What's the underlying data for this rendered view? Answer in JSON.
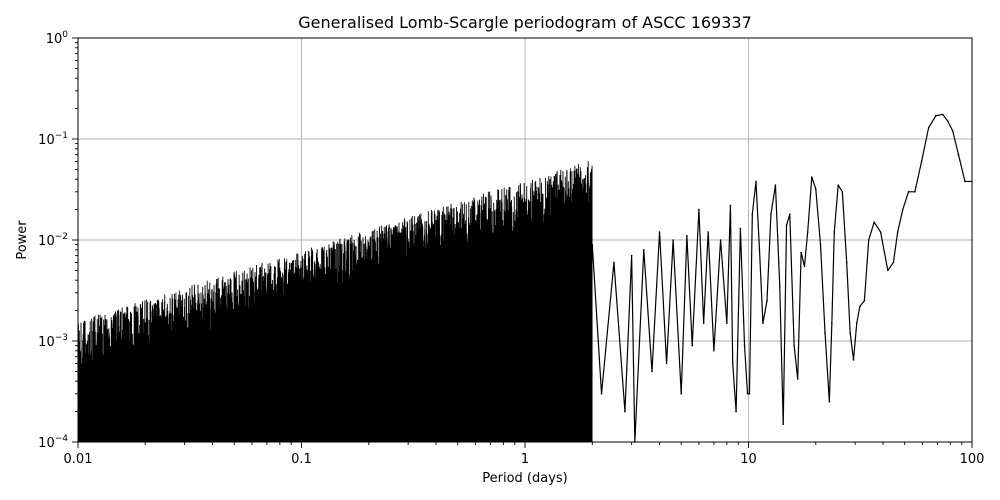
{
  "chart_data": {
    "type": "line",
    "title": "Generalised Lomb-Scargle periodogram of ASCC 169337",
    "xlabel": "Period (days)",
    "ylabel": "Power",
    "xscale": "log",
    "yscale": "log",
    "xlim": [
      0.01,
      100
    ],
    "ylim": [
      0.0001,
      1
    ],
    "grid": true,
    "x_major_ticks": [
      {
        "value": 0.01,
        "label": "0.01"
      },
      {
        "value": 0.1,
        "label": "0.1"
      },
      {
        "value": 1,
        "label": "1"
      },
      {
        "value": 10,
        "label": "10"
      },
      {
        "value": 100,
        "label": "100"
      }
    ],
    "y_major_ticks": [
      {
        "value": 0.0001,
        "base": "10",
        "exponent": "−4"
      },
      {
        "value": 0.001,
        "base": "10",
        "exponent": "−3"
      },
      {
        "value": 0.01,
        "base": "10",
        "exponent": "−2"
      },
      {
        "value": 0.1,
        "base": "10",
        "exponent": "−1"
      },
      {
        "value": 1,
        "base": "10",
        "exponent": "0"
      }
    ],
    "colors": {
      "line": "#000000",
      "grid": "#b0b0b0"
    },
    "series": [
      {
        "x": [
          2.0,
          2.2,
          2.5,
          2.8,
          3.0,
          3.1,
          3.4,
          3.7,
          4.0,
          4.3,
          4.6,
          5.0,
          5.3,
          5.6,
          6.0,
          6.3,
          6.6,
          7.0,
          7.5,
          8.0,
          8.3,
          8.5,
          8.8,
          9.2,
          9.6,
          9.9,
          10.1,
          10.4,
          10.8,
          11.2,
          11.6,
          12.1,
          12.6,
          13.2,
          13.8,
          14.3,
          14.8,
          15.3,
          16.0,
          16.6,
          17.2,
          17.8,
          18.4,
          19.2,
          20.0,
          21.0,
          22.0,
          23.0,
          23.6,
          24.2,
          25.2,
          26.3,
          27.5,
          28.5,
          29.5,
          30.5,
          31.5,
          33.0,
          34.5,
          36.5,
          39.0,
          42.0,
          44.5,
          46.5,
          49.0,
          52.0,
          55.5,
          59.5,
          64.0,
          69.0,
          74.0,
          78.0,
          82.0,
          87.0,
          93.0,
          100.0
        ],
        "y": [
          0.009,
          0.0003,
          0.006,
          0.0002,
          0.007,
          0.0001,
          0.008,
          0.0005,
          0.012,
          0.0006,
          0.01,
          0.0003,
          0.011,
          0.0009,
          0.02,
          0.0015,
          0.012,
          0.0008,
          0.01,
          0.0015,
          0.022,
          0.0006,
          0.0002,
          0.013,
          0.0009,
          0.0003,
          0.0003,
          0.018,
          0.038,
          0.008,
          0.0015,
          0.0025,
          0.018,
          0.035,
          0.0035,
          0.00015,
          0.014,
          0.018,
          0.0009,
          0.00042,
          0.0075,
          0.0055,
          0.012,
          0.042,
          0.032,
          0.009,
          0.0012,
          0.00025,
          0.0015,
          0.012,
          0.035,
          0.03,
          0.006,
          0.0012,
          0.00065,
          0.0015,
          0.0022,
          0.0025,
          0.01,
          0.015,
          0.012,
          0.005,
          0.006,
          0.012,
          0.02,
          0.03,
          0.03,
          0.06,
          0.13,
          0.17,
          0.175,
          0.15,
          0.12,
          0.07,
          0.038,
          0.038
        ]
      }
    ]
  }
}
